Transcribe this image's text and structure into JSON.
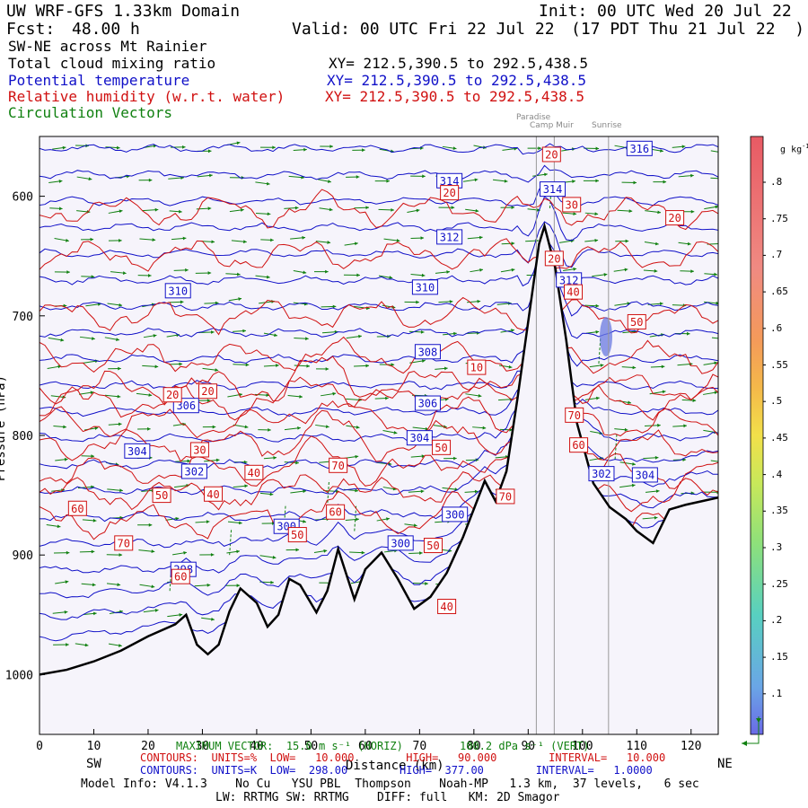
{
  "header": {
    "model": "UW WRF-GFS 1.33km Domain",
    "init": "Init: 00 UTC Wed 20 Jul 22",
    "fcst_label": "Fcst:",
    "fcst_value": "48.00 h",
    "valid": "Valid: 00 UTC Fri 22 Jul 22",
    "valid_local": "(17 PDT Thu 21 Jul 22  )",
    "section": "SW-NE across Mt Rainier",
    "cloud_label": "Total cloud mixing ratio",
    "cloud_xy": "XY= 212.5,390.5 to 292.5,438.5",
    "theta_label": "Potential temperature",
    "theta_xy": "XY= 212.5,390.5 to 292.5,438.5",
    "rh_label": "Relative humidity (w.r.t. water)",
    "rh_xy": "XY= 212.5,390.5 to 292.5,438.5",
    "vec_label": "Circulation Vectors"
  },
  "places": {
    "paradise": "Paradise",
    "camp_muir": "Camp Muir",
    "sunrise": "Sunrise"
  },
  "colors": {
    "theta": "#1010c8",
    "rh": "#d01010",
    "vectors": "#108010",
    "terrain": "#000000",
    "background": "#f6f4fb"
  },
  "colorbar": {
    "unit": "g kg",
    "unit_sup": "-1",
    "labels": [
      ".8",
      ".75",
      ".7",
      ".65",
      ".6",
      ".55",
      ".5",
      ".45",
      ".4",
      ".35",
      ".3",
      ".25",
      ".2",
      ".15",
      ".1"
    ]
  },
  "footer": {
    "max_vector": "MAXIMUM VECTOR:  15.0 m s⁻¹ (HORIZ)",
    "vert_vector": "100.2 dPa s⁻¹ (VERT)",
    "rh_contours": "CONTOURS:  UNITS=%  LOW=   10.000        HIGH=   90.000        INTERVAL=   10.000",
    "theta_contours": "CONTOURS:  UNITS=K  LOW=  298.00        HIGH=  377.00        INTERVAL=   1.0000",
    "model_info": "Model Info: V4.1.3    No Cu   YSU PBL  Thompson    Noah-MP   1.3 km,  37 levels,   6 sec",
    "model_info2": "LW: RRTMG SW: RRTMG    DIFF: full   KM: 2D Smagor"
  },
  "chart_data": {
    "type": "cross-section",
    "xlabel": "Distance (km)",
    "ylabel": "Pressure (hPa)",
    "x_left_label": "SW",
    "x_right_label": "NE",
    "xlim": [
      0,
      125
    ],
    "ylim": [
      1050,
      550
    ],
    "xticks": [
      0,
      10,
      20,
      30,
      40,
      50,
      60,
      70,
      80,
      90,
      100,
      110,
      120
    ],
    "yticks": [
      600,
      700,
      800,
      900,
      1000
    ],
    "ytick_labels": [
      "600",
      "700",
      "800",
      "900",
      "1000"
    ],
    "terrain": [
      [
        0,
        1000
      ],
      [
        5,
        996
      ],
      [
        10,
        989
      ],
      [
        15,
        980
      ],
      [
        20,
        968
      ],
      [
        25,
        958
      ],
      [
        27,
        950
      ],
      [
        29,
        975
      ],
      [
        31,
        983
      ],
      [
        33,
        975
      ],
      [
        35,
        947
      ],
      [
        37,
        928
      ],
      [
        40,
        940
      ],
      [
        42,
        960
      ],
      [
        44,
        950
      ],
      [
        46,
        920
      ],
      [
        48,
        925
      ],
      [
        51,
        948
      ],
      [
        53,
        930
      ],
      [
        55,
        895
      ],
      [
        58,
        937
      ],
      [
        60,
        912
      ],
      [
        63,
        898
      ],
      [
        66,
        920
      ],
      [
        69,
        945
      ],
      [
        72,
        935
      ],
      [
        75,
        915
      ],
      [
        78,
        885
      ],
      [
        82,
        838
      ],
      [
        84,
        855
      ],
      [
        86,
        830
      ],
      [
        88,
        770
      ],
      [
        90,
        705
      ],
      [
        92,
        640
      ],
      [
        93,
        625
      ],
      [
        95,
        660
      ],
      [
        97,
        720
      ],
      [
        99,
        790
      ],
      [
        102,
        840
      ],
      [
        105,
        860
      ],
      [
        108,
        870
      ],
      [
        110,
        880
      ],
      [
        113,
        890
      ],
      [
        116,
        862
      ],
      [
        119,
        858
      ],
      [
        122,
        855
      ],
      [
        125,
        852
      ]
    ],
    "section_markers": [
      {
        "name": "Paradise",
        "x": 91.5
      },
      {
        "name": "Camp Muir",
        "x": 94.8
      },
      {
        "name": "Sunrise",
        "x": 104.8
      }
    ],
    "theta_labels": [
      {
        "value": "316",
        "x": 110.5,
        "p": 560
      },
      {
        "value": "314",
        "x": 75.5,
        "p": 587
      },
      {
        "value": "314",
        "x": 94.5,
        "p": 594
      },
      {
        "value": "312",
        "x": 75.5,
        "p": 634
      },
      {
        "value": "312",
        "x": 97.5,
        "p": 670
      },
      {
        "value": "310",
        "x": 25.5,
        "p": 679
      },
      {
        "value": "310",
        "x": 71.0,
        "p": 676
      },
      {
        "value": "308",
        "x": 71.5,
        "p": 730
      },
      {
        "value": "306",
        "x": 27.0,
        "p": 775
      },
      {
        "value": "306",
        "x": 71.5,
        "p": 773
      },
      {
        "value": "304",
        "x": 18.0,
        "p": 813
      },
      {
        "value": "304",
        "x": 70.0,
        "p": 802
      },
      {
        "value": "304",
        "x": 111.5,
        "p": 833
      },
      {
        "value": "302",
        "x": 28.5,
        "p": 830
      },
      {
        "value": "302",
        "x": 103.5,
        "p": 832
      },
      {
        "value": "300",
        "x": 45.5,
        "p": 876
      },
      {
        "value": "300",
        "x": 66.5,
        "p": 890
      },
      {
        "value": "300",
        "x": 76.5,
        "p": 866
      },
      {
        "value": "298",
        "x": 26.5,
        "p": 912
      }
    ],
    "rh_labels": [
      {
        "value": "20",
        "x": 94.3,
        "p": 565
      },
      {
        "value": "20",
        "x": 75.5,
        "p": 597
      },
      {
        "value": "30",
        "x": 98.0,
        "p": 607
      },
      {
        "value": "20",
        "x": 117.0,
        "p": 618
      },
      {
        "value": "20",
        "x": 94.8,
        "p": 652
      },
      {
        "value": "40",
        "x": 98.3,
        "p": 680
      },
      {
        "value": "50",
        "x": 110.0,
        "p": 705
      },
      {
        "value": "10",
        "x": 80.5,
        "p": 743
      },
      {
        "value": "20",
        "x": 24.5,
        "p": 766
      },
      {
        "value": "20",
        "x": 31.0,
        "p": 763
      },
      {
        "value": "70",
        "x": 98.5,
        "p": 783
      },
      {
        "value": "60",
        "x": 99.3,
        "p": 808
      },
      {
        "value": "30",
        "x": 29.5,
        "p": 812
      },
      {
        "value": "50",
        "x": 74.0,
        "p": 810
      },
      {
        "value": "40",
        "x": 39.5,
        "p": 831
      },
      {
        "value": "70",
        "x": 55.0,
        "p": 825
      },
      {
        "value": "40",
        "x": 32.0,
        "p": 849
      },
      {
        "value": "50",
        "x": 22.5,
        "p": 850
      },
      {
        "value": "70",
        "x": 85.8,
        "p": 851
      },
      {
        "value": "60",
        "x": 7.0,
        "p": 861
      },
      {
        "value": "60",
        "x": 54.5,
        "p": 864
      },
      {
        "value": "70",
        "x": 15.5,
        "p": 890
      },
      {
        "value": "50",
        "x": 47.5,
        "p": 883
      },
      {
        "value": "50",
        "x": 72.5,
        "p": 892
      },
      {
        "value": "60",
        "x": 26.0,
        "p": 918
      },
      {
        "value": "40",
        "x": 75.0,
        "p": 943
      }
    ]
  }
}
